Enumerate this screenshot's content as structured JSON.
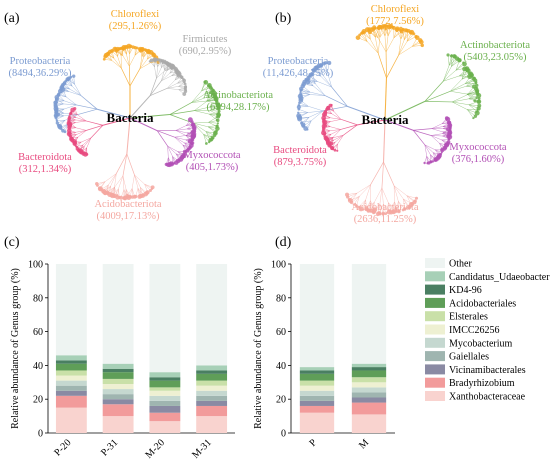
{
  "panels": {
    "a": {
      "label": "(a)",
      "center_label": "Bacteria",
      "phyla": [
        {
          "name": "Chloroflexi",
          "stat": "(295,1.26%)",
          "color": "#f5a623"
        },
        {
          "name": "Firmicutes",
          "stat": "(690,2.95%)",
          "color": "#a9a9a9"
        },
        {
          "name": "Proteobacteria",
          "stat": "(8494,36.29%)",
          "color": "#7b9bd1"
        },
        {
          "name": "Actinobacteriota",
          "stat": "(6594,28.17%)",
          "color": "#6ab04c"
        },
        {
          "name": "Bacteroidota",
          "stat": "(312,1.34%)",
          "color": "#e84a7f"
        },
        {
          "name": "Myxococcota",
          "stat": "(405,1.73%)",
          "color": "#b24fb5"
        },
        {
          "name": "Acidobacteriota",
          "stat": "(4009,17.13%)",
          "color": "#f4a7a0"
        }
      ]
    },
    "b": {
      "label": "(b)",
      "center_label": "Bacteria",
      "phyla": [
        {
          "name": "Chloroflexi",
          "stat": "(1772,7.56%)",
          "color": "#f5a623"
        },
        {
          "name": "Proteobacteria",
          "stat": "(11,426,48.75%)",
          "color": "#7b9bd1"
        },
        {
          "name": "Actinobacteriota",
          "stat": "(5403,23.05%)",
          "color": "#6ab04c"
        },
        {
          "name": "Bacteroidota",
          "stat": "(879,3.75%)",
          "color": "#e84a7f"
        },
        {
          "name": "Myxococcota",
          "stat": "(376,1.60%)",
          "color": "#b24fb5"
        },
        {
          "name": "Acidobacteriota",
          "stat": "(2636,11.25%)",
          "color": "#f4a7a0"
        }
      ]
    },
    "c": {
      "label": "(c)"
    },
    "d": {
      "label": "(d)"
    }
  },
  "chart_data": [
    {
      "type": "bar",
      "stacked": true,
      "panel": "c",
      "categories": [
        "P-20",
        "P-31",
        "M-20",
        "M-31"
      ],
      "ylabel": "Relative abundance of Genus group (%)",
      "ylim": [
        0,
        100
      ],
      "yticks": [
        0,
        20,
        40,
        60,
        80,
        100
      ],
      "series": [
        {
          "name": "Xanthobacteraceae",
          "color": "#f9d3cf",
          "values": [
            15,
            10,
            7,
            10
          ]
        },
        {
          "name": "Bradyrhizobium",
          "color": "#f29b9b",
          "values": [
            7,
            7,
            5,
            6
          ]
        },
        {
          "name": "Vicinamibacterales",
          "color": "#8a8aa3",
          "values": [
            3,
            3,
            4,
            3
          ]
        },
        {
          "name": "Gaiellales",
          "color": "#9fb5b0",
          "values": [
            3,
            3,
            3,
            3
          ]
        },
        {
          "name": "Mycobacterium",
          "color": "#c5d8d0",
          "values": [
            3,
            3,
            3,
            3
          ]
        },
        {
          "name": "IMCC26256",
          "color": "#eef0d2",
          "values": [
            3,
            3,
            3,
            3
          ]
        },
        {
          "name": "Elsterales",
          "color": "#c9e0a8",
          "values": [
            3,
            3,
            2,
            3
          ]
        },
        {
          "name": "Acidobacteriales",
          "color": "#5f9e58",
          "values": [
            4,
            4,
            4,
            4
          ]
        },
        {
          "name": "KD4-96",
          "color": "#4a7f62",
          "values": [
            2,
            2,
            2,
            2
          ]
        },
        {
          "name": "Candidatus_Udaeobacter",
          "color": "#a7d0b7",
          "values": [
            3,
            3,
            3,
            3
          ]
        },
        {
          "name": "Other",
          "color": "#eef4f2",
          "values": [
            54,
            59,
            64,
            60
          ]
        }
      ]
    },
    {
      "type": "bar",
      "stacked": true,
      "panel": "d",
      "categories": [
        "P",
        "M"
      ],
      "ylabel": "Relative abundance of Genus group (%)",
      "ylim": [
        0,
        100
      ],
      "yticks": [
        0,
        20,
        40,
        60,
        80,
        100
      ],
      "legend_position": "right",
      "series": [
        {
          "name": "Xanthobacteraceae",
          "color": "#f9d3cf",
          "values": [
            12,
            11
          ]
        },
        {
          "name": "Bradyrhizobium",
          "color": "#f29b9b",
          "values": [
            4,
            7
          ]
        },
        {
          "name": "Vicinamibacterales",
          "color": "#8a8aa3",
          "values": [
            3,
            3
          ]
        },
        {
          "name": "Gaiellales",
          "color": "#9fb5b0",
          "values": [
            3,
            3
          ]
        },
        {
          "name": "Mycobacterium",
          "color": "#c5d8d0",
          "values": [
            3,
            3
          ]
        },
        {
          "name": "IMCC26256",
          "color": "#eef0d2",
          "values": [
            3,
            3
          ]
        },
        {
          "name": "Elsterales",
          "color": "#c9e0a8",
          "values": [
            3,
            3
          ]
        },
        {
          "name": "Acidobacteriales",
          "color": "#5f9e58",
          "values": [
            4,
            4
          ]
        },
        {
          "name": "KD4-96",
          "color": "#4a7f62",
          "values": [
            2,
            2
          ]
        },
        {
          "name": "Candidatus_Udaeobacter",
          "color": "#a7d0b7",
          "values": [
            2,
            2
          ]
        },
        {
          "name": "Other",
          "color": "#eef4f2",
          "values": [
            61,
            59
          ]
        }
      ]
    }
  ]
}
